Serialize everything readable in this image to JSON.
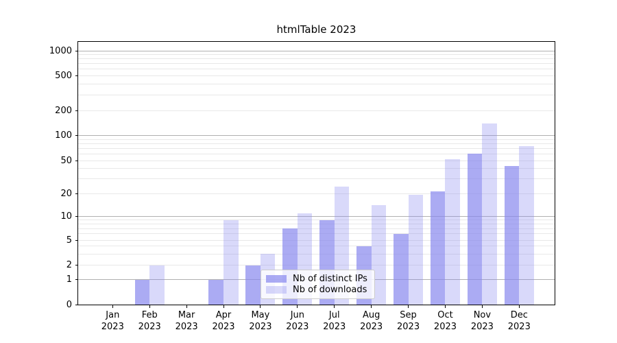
{
  "title": "htmlTable 2023",
  "chart_data": {
    "type": "bar",
    "title": "htmlTable 2023",
    "categories": [
      "Jan 2023",
      "Feb 2023",
      "Mar 2023",
      "Apr 2023",
      "May 2023",
      "Jun 2023",
      "Jul 2023",
      "Aug 2023",
      "Sep 2023",
      "Oct 2023",
      "Nov 2023",
      "Dec 2023"
    ],
    "series": [
      {
        "name": "Nb of distinct IPs",
        "values": [
          0,
          1,
          0,
          1,
          2,
          7,
          9,
          4,
          6,
          21,
          60,
          43
        ]
      },
      {
        "name": "Nb of downloads",
        "values": [
          0,
          2,
          0,
          9,
          3,
          11,
          24,
          14,
          19,
          52,
          140,
          75
        ]
      }
    ],
    "yticks": [
      0,
      1,
      2,
      5,
      10,
      20,
      50,
      100,
      200,
      500,
      1000
    ],
    "yscale": "log-like with 0 baseline",
    "grid": "horizontal major+minor",
    "legend_position": "lower center"
  },
  "colors": {
    "bar_base": "#8888ee",
    "bar_ips": "rgba(136,136,238,0.70)",
    "bar_downloads": "rgba(136,136,238,0.32)",
    "grid_major": "#b0b0b0",
    "grid_minor": "#e8e8e8",
    "axis": "#000000",
    "legend_bg": "rgba(255,255,255,0.8)",
    "legend_border": "#cccccc",
    "background": "#ffffff"
  }
}
